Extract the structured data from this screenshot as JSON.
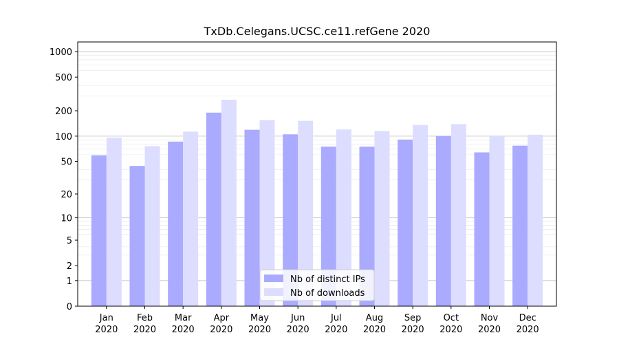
{
  "chart_data": {
    "type": "bar",
    "title": "TxDb.Celegans.UCSC.ce11.refGene 2020",
    "xlabel": "",
    "ylabel": "",
    "y_scale": "log(1+y)",
    "ylim": [
      0,
      1300
    ],
    "major_ticks": [
      0,
      1,
      2,
      5,
      10,
      20,
      50,
      100,
      200,
      500,
      1000
    ],
    "minor_ticks": [
      3,
      4,
      6,
      7,
      8,
      9,
      30,
      40,
      60,
      70,
      80,
      90,
      300,
      400,
      600,
      700,
      800,
      900
    ],
    "categories": [
      {
        "month": "Jan",
        "year": "2020"
      },
      {
        "month": "Feb",
        "year": "2020"
      },
      {
        "month": "Mar",
        "year": "2020"
      },
      {
        "month": "Apr",
        "year": "2020"
      },
      {
        "month": "May",
        "year": "2020"
      },
      {
        "month": "Jun",
        "year": "2020"
      },
      {
        "month": "Jul",
        "year": "2020"
      },
      {
        "month": "Aug",
        "year": "2020"
      },
      {
        "month": "Sep",
        "year": "2020"
      },
      {
        "month": "Oct",
        "year": "2020"
      },
      {
        "month": "Nov",
        "year": "2020"
      },
      {
        "month": "Dec",
        "year": "2020"
      }
    ],
    "series": [
      {
        "name": "Nb of distinct IPs",
        "color": "#aaaaff",
        "values": [
          59,
          44,
          86,
          190,
          119,
          105,
          75,
          75,
          91,
          100,
          64,
          77
        ]
      },
      {
        "name": "Nb of downloads",
        "color": "#ddddff",
        "values": [
          96,
          76,
          113,
          270,
          155,
          152,
          120,
          115,
          136,
          139,
          100,
          104
        ]
      }
    ],
    "grid": true,
    "legend_position": "bottom-center"
  }
}
